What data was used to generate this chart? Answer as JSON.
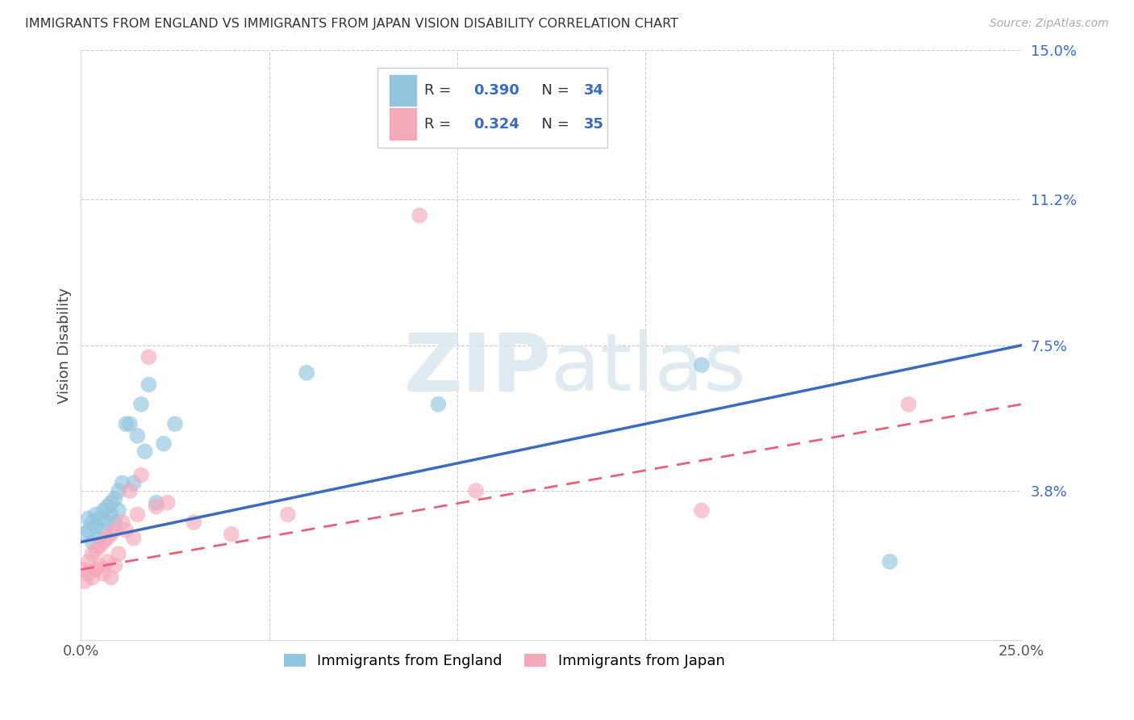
{
  "title": "IMMIGRANTS FROM ENGLAND VS IMMIGRANTS FROM JAPAN VISION DISABILITY CORRELATION CHART",
  "source": "Source: ZipAtlas.com",
  "ylabel": "Vision Disability",
  "xlim": [
    0.0,
    0.25
  ],
  "ylim": [
    0.0,
    0.15
  ],
  "ytick_positions": [
    0.0,
    0.038,
    0.075,
    0.112,
    0.15
  ],
  "ytick_labels": [
    "",
    "3.8%",
    "7.5%",
    "11.2%",
    "15.0%"
  ],
  "england_R": 0.39,
  "england_N": 34,
  "japan_R": 0.324,
  "japan_N": 35,
  "england_color": "#92c5de",
  "japan_color": "#f4a9bb",
  "england_line_color": "#3a6bbf",
  "japan_line_color": "#e8607a",
  "watermark_color": "#e0e8f0",
  "england_x": [
    0.001,
    0.002,
    0.002,
    0.003,
    0.003,
    0.004,
    0.004,
    0.005,
    0.005,
    0.006,
    0.006,
    0.007,
    0.007,
    0.008,
    0.008,
    0.009,
    0.009,
    0.01,
    0.01,
    0.011,
    0.012,
    0.013,
    0.014,
    0.015,
    0.016,
    0.017,
    0.018,
    0.02,
    0.022,
    0.025,
    0.06,
    0.095,
    0.165,
    0.215
  ],
  "england_y": [
    0.027,
    0.028,
    0.031,
    0.025,
    0.03,
    0.029,
    0.032,
    0.026,
    0.031,
    0.033,
    0.028,
    0.034,
    0.03,
    0.035,
    0.032,
    0.036,
    0.03,
    0.038,
    0.033,
    0.04,
    0.055,
    0.055,
    0.04,
    0.052,
    0.06,
    0.048,
    0.065,
    0.035,
    0.05,
    0.055,
    0.068,
    0.06,
    0.07,
    0.02
  ],
  "japan_x": [
    0.001,
    0.001,
    0.002,
    0.002,
    0.003,
    0.003,
    0.004,
    0.004,
    0.005,
    0.005,
    0.006,
    0.006,
    0.007,
    0.007,
    0.008,
    0.008,
    0.009,
    0.009,
    0.01,
    0.011,
    0.012,
    0.013,
    0.014,
    0.015,
    0.016,
    0.018,
    0.02,
    0.023,
    0.03,
    0.04,
    0.055,
    0.09,
    0.105,
    0.165,
    0.22
  ],
  "japan_y": [
    0.018,
    0.015,
    0.02,
    0.017,
    0.022,
    0.016,
    0.023,
    0.018,
    0.024,
    0.019,
    0.025,
    0.017,
    0.026,
    0.02,
    0.027,
    0.016,
    0.028,
    0.019,
    0.022,
    0.03,
    0.028,
    0.038,
    0.026,
    0.032,
    0.042,
    0.072,
    0.034,
    0.035,
    0.03,
    0.027,
    0.032,
    0.108,
    0.038,
    0.033,
    0.06
  ],
  "eng_line_x0": 0.0,
  "eng_line_y0": 0.025,
  "eng_line_x1": 0.25,
  "eng_line_y1": 0.075,
  "jap_line_x0": 0.0,
  "jap_line_y0": 0.018,
  "jap_line_x1": 0.25,
  "jap_line_y1": 0.06
}
